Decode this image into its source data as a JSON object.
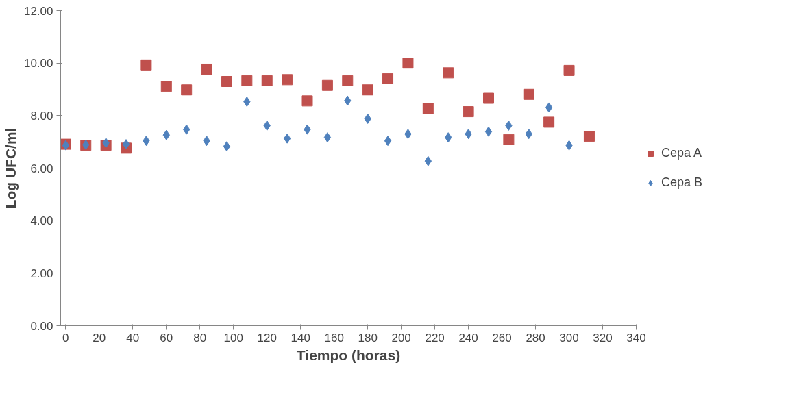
{
  "chart_data": {
    "type": "scatter",
    "xlabel": "Tiempo (horas)",
    "ylabel": "Log UFC/ml",
    "xlim": [
      -3,
      340
    ],
    "xticks": [
      0,
      20,
      40,
      60,
      80,
      100,
      120,
      140,
      160,
      180,
      200,
      220,
      240,
      260,
      280,
      300,
      320,
      340
    ],
    "ylim": [
      0,
      12
    ],
    "yticks": [
      {
        "value": 0,
        "label": "0.00"
      },
      {
        "value": 2,
        "label": "2.00"
      },
      {
        "value": 4,
        "label": "4.00"
      },
      {
        "value": 6,
        "label": "6.00"
      },
      {
        "value": 8,
        "label": "8.00"
      },
      {
        "value": 10,
        "label": "10.00"
      },
      {
        "value": 12,
        "label": "12.00"
      }
    ],
    "grid": false,
    "legend": "right",
    "series": [
      {
        "name": "Cepa A",
        "color": "#c0504d",
        "marker": "square",
        "x": [
          0,
          12,
          24,
          36,
          48,
          60,
          72,
          84,
          96,
          108,
          120,
          132,
          144,
          156,
          168,
          180,
          192,
          204,
          216,
          228,
          240,
          252,
          264,
          276,
          288,
          300,
          312
        ],
        "values": [
          6.91,
          6.87,
          6.87,
          6.76,
          9.93,
          9.11,
          8.98,
          9.77,
          9.3,
          9.33,
          9.33,
          9.37,
          8.56,
          9.15,
          9.33,
          8.98,
          9.41,
          10.0,
          8.27,
          9.63,
          8.15,
          8.66,
          7.09,
          8.81,
          7.75,
          9.72,
          7.21
        ]
      },
      {
        "name": "Cepa B",
        "color": "#4f81bd",
        "marker": "diamond",
        "x": [
          0,
          12,
          24,
          36,
          48,
          60,
          72,
          84,
          96,
          108,
          120,
          132,
          144,
          156,
          168,
          180,
          192,
          204,
          216,
          228,
          240,
          252,
          264,
          276,
          288,
          300
        ],
        "values": [
          6.87,
          6.89,
          6.96,
          6.91,
          7.04,
          7.26,
          7.47,
          7.04,
          6.83,
          8.53,
          7.62,
          7.13,
          7.47,
          7.17,
          8.57,
          7.88,
          7.04,
          7.3,
          6.27,
          7.17,
          7.3,
          7.39,
          7.62,
          7.3,
          8.31,
          6.87
        ]
      }
    ]
  }
}
